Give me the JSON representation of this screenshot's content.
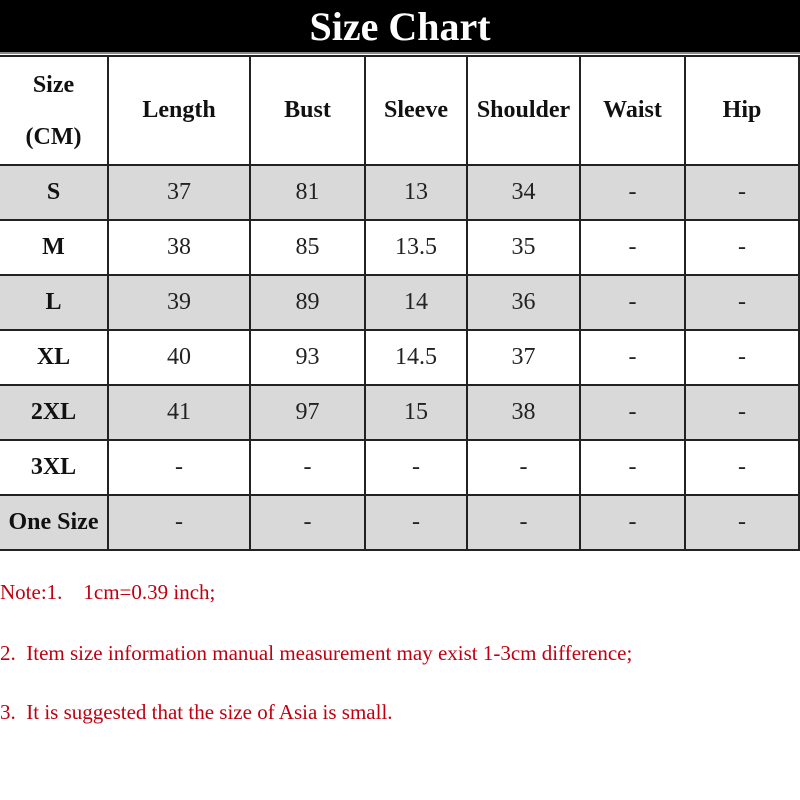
{
  "title": "Size Chart",
  "table": {
    "header_size": [
      "Size",
      "(CM)"
    ],
    "columns": [
      "Length",
      "Bust",
      "Sleeve",
      "Shoulder",
      "Waist",
      "Hip"
    ],
    "rows": [
      {
        "size": "S",
        "values": [
          "37",
          "81",
          "13",
          "34",
          "-",
          "-"
        ]
      },
      {
        "size": "M",
        "values": [
          "38",
          "85",
          "13.5",
          "35",
          "-",
          "-"
        ]
      },
      {
        "size": "L",
        "values": [
          "39",
          "89",
          "14",
          "36",
          "-",
          "-"
        ]
      },
      {
        "size": "XL",
        "values": [
          "40",
          "93",
          "14.5",
          "37",
          "-",
          "-"
        ]
      },
      {
        "size": "2XL",
        "values": [
          "41",
          "97",
          "15",
          "38",
          "-",
          "-"
        ]
      },
      {
        "size": "3XL",
        "values": [
          "-",
          "-",
          "-",
          "-",
          "-",
          "-"
        ]
      },
      {
        "size": "One Size",
        "values": [
          "-",
          "-",
          "-",
          "-",
          "-",
          "-"
        ]
      }
    ],
    "shaded_row_color": "#d9d9d9"
  },
  "notes": [
    "Note:1.    1cm=0.39 inch;",
    "2.  Item size information manual measurement may exist 1-3cm difference;",
    "3.  It is suggested that the size of Asia is small."
  ],
  "note_color": "#c00010"
}
